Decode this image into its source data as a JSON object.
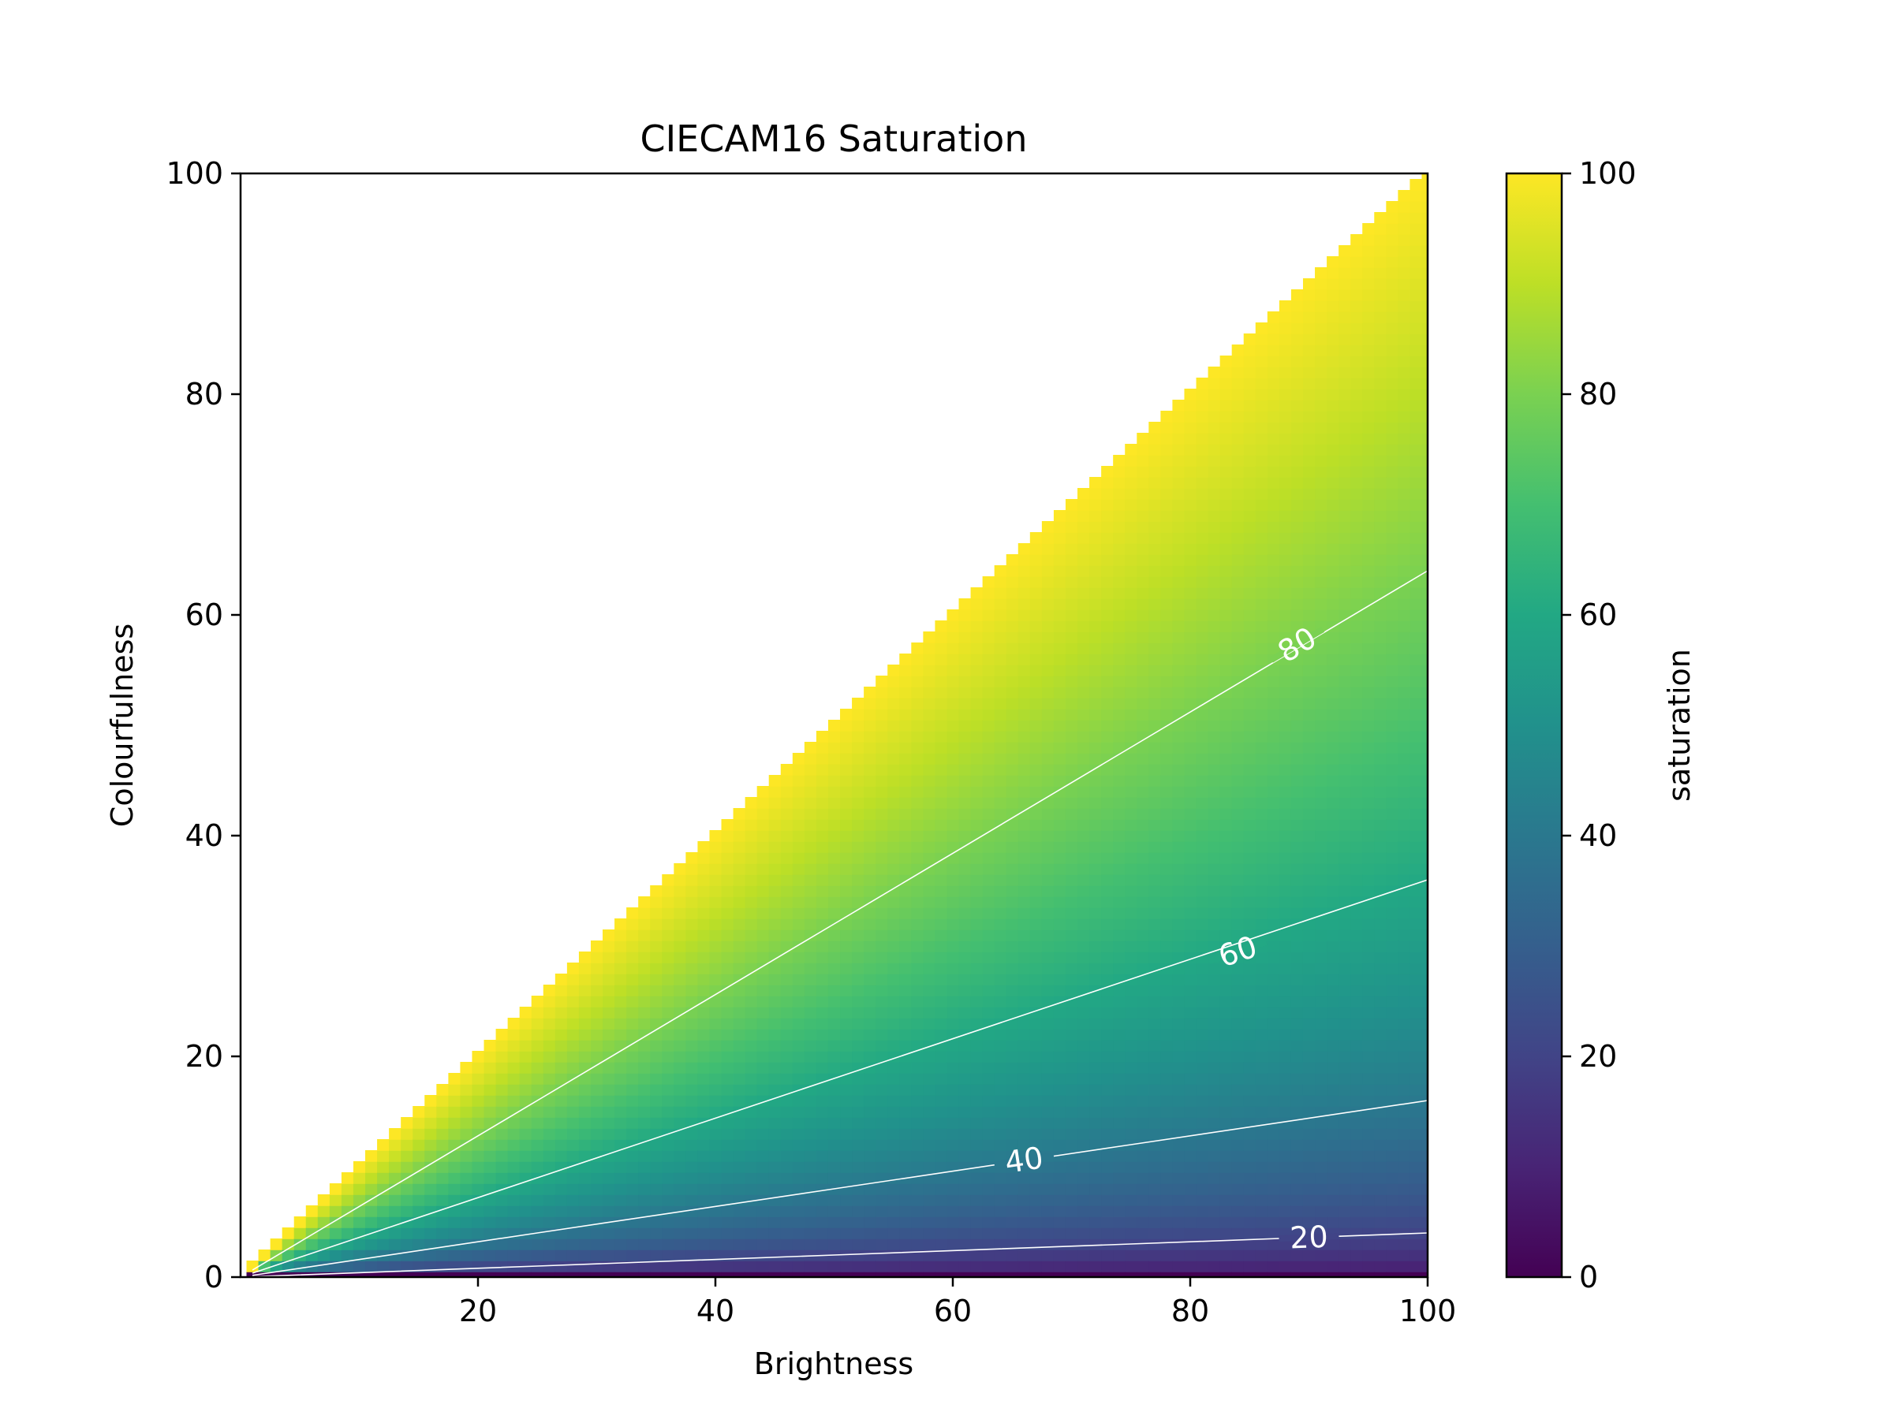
{
  "chart_data": {
    "type": "heatmap",
    "title": "CIECAM16 Saturation",
    "xlabel": "Brightness",
    "ylabel": "Colourfulness",
    "xlim": [
      0,
      100
    ],
    "ylim": [
      0,
      100
    ],
    "x_ticks": [
      20,
      40,
      60,
      80,
      100
    ],
    "y_ticks": [
      0,
      20,
      40,
      60,
      80,
      100
    ],
    "grid": false,
    "colormap": "viridis",
    "colorbar": {
      "label": "saturation",
      "range": [
        0,
        100
      ],
      "ticks": [
        0,
        20,
        40,
        60,
        80,
        100
      ]
    },
    "valid_region": "colourfulness <= brightness",
    "saturation_model": "100 * sqrt(colourfulness / brightness)",
    "grid_step": 1,
    "contours": [
      {
        "level": 20,
        "label": "20",
        "points": [
          [
            1,
            0.04
          ],
          [
            25,
            1
          ],
          [
            50,
            2
          ],
          [
            75,
            3
          ],
          [
            100,
            4
          ]
        ]
      },
      {
        "level": 40,
        "label": "40",
        "points": [
          [
            1,
            0.16
          ],
          [
            25,
            4
          ],
          [
            50,
            8
          ],
          [
            75,
            12
          ],
          [
            100,
            16
          ]
        ]
      },
      {
        "level": 60,
        "label": "60",
        "points": [
          [
            1,
            0.36
          ],
          [
            25,
            9
          ],
          [
            50,
            18
          ],
          [
            75,
            27
          ],
          [
            100,
            36
          ]
        ]
      },
      {
        "level": 80,
        "label": "80",
        "points": [
          [
            1,
            0.64
          ],
          [
            25,
            16
          ],
          [
            50,
            32
          ],
          [
            75,
            48
          ],
          [
            100,
            64
          ]
        ]
      }
    ],
    "contour_label_positions": [
      {
        "label": "20",
        "x": 90,
        "y": 3.6
      },
      {
        "label": "40",
        "x": 66,
        "y": 10.6
      },
      {
        "label": "60",
        "x": 84,
        "y": 29.5
      },
      {
        "label": "80",
        "x": 89,
        "y": 57.3
      }
    ],
    "contour_color": "#ffffff"
  }
}
